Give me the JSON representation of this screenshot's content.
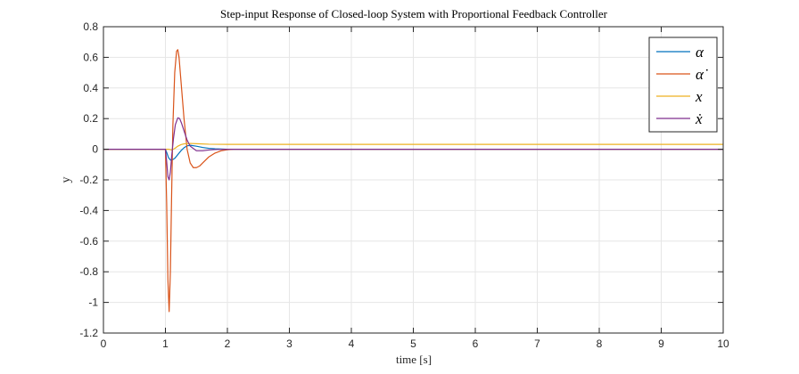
{
  "colors": {
    "alpha": "#0072BD",
    "alpha_dot": "#D95319",
    "x": "#EDB120",
    "x_dot": "#7E2F8E",
    "grid": "#e6e6e6",
    "axis": "#262626"
  },
  "chart_data": {
    "type": "line",
    "title": "Step-input Response of Closed-loop System with Proportional Feedback Controller",
    "xlabel": "time [s]",
    "ylabel": "y",
    "xlim": [
      0,
      10
    ],
    "ylim": [
      -1.2,
      0.8
    ],
    "xticks": [
      0,
      1,
      2,
      3,
      4,
      5,
      6,
      7,
      8,
      9,
      10
    ],
    "yticks": [
      0.8,
      0.6,
      0.4,
      0.2,
      0,
      -0.2,
      -0.4,
      -0.6,
      -0.8,
      -1,
      -1.2
    ],
    "xtick_labels": [
      "0",
      "1",
      "2",
      "3",
      "4",
      "5",
      "6",
      "7",
      "8",
      "9",
      "10"
    ],
    "ytick_labels": [
      "0.8",
      "0.6",
      "0.4",
      "0.2",
      "0",
      "-0.2",
      "-0.4",
      "-0.6",
      "-0.8",
      "-1",
      "-1.2"
    ],
    "grid": true,
    "legend_position": "top-right",
    "series": [
      {
        "name": "α",
        "color_key": "alpha",
        "x": [
          0,
          1.0,
          1.02,
          1.05,
          1.08,
          1.1,
          1.15,
          1.2,
          1.25,
          1.3,
          1.35,
          1.4,
          1.5,
          1.6,
          1.7,
          1.8,
          2.0,
          2.2,
          2.5,
          10
        ],
        "y": [
          0,
          0,
          -0.02,
          -0.055,
          -0.07,
          -0.072,
          -0.06,
          -0.035,
          -0.01,
          0.01,
          0.022,
          0.026,
          0.02,
          0.012,
          0.006,
          0.003,
          0.0,
          0.0,
          0,
          0
        ]
      },
      {
        "name": "α̇",
        "color_key": "alpha_dot",
        "x": [
          0,
          1.0,
          1.02,
          1.04,
          1.06,
          1.08,
          1.1,
          1.12,
          1.15,
          1.18,
          1.2,
          1.22,
          1.25,
          1.3,
          1.35,
          1.4,
          1.45,
          1.5,
          1.55,
          1.6,
          1.7,
          1.8,
          1.9,
          2.0,
          2.1,
          2.3,
          10
        ],
        "y": [
          0,
          0,
          -0.35,
          -0.85,
          -1.06,
          -0.8,
          -0.3,
          0.15,
          0.5,
          0.64,
          0.65,
          0.6,
          0.45,
          0.2,
          0.0,
          -0.09,
          -0.12,
          -0.12,
          -0.11,
          -0.09,
          -0.05,
          -0.025,
          -0.01,
          -0.003,
          0.0,
          0,
          0
        ]
      },
      {
        "name": "x",
        "color_key": "x",
        "x": [
          0,
          1.0,
          1.05,
          1.1,
          1.15,
          1.2,
          1.25,
          1.3,
          1.4,
          1.5,
          1.7,
          2.0,
          10
        ],
        "y": [
          0,
          0,
          0.0,
          -0.005,
          0.005,
          0.02,
          0.03,
          0.035,
          0.038,
          0.036,
          0.033,
          0.032,
          0.032
        ]
      },
      {
        "name": "ẋ",
        "color_key": "x_dot",
        "x": [
          0,
          1.0,
          1.02,
          1.04,
          1.06,
          1.08,
          1.1,
          1.13,
          1.16,
          1.2,
          1.23,
          1.26,
          1.3,
          1.35,
          1.4,
          1.5,
          1.6,
          1.7,
          1.8,
          2.0,
          10
        ],
        "y": [
          0,
          0,
          -0.08,
          -0.18,
          -0.2,
          -0.15,
          -0.05,
          0.07,
          0.16,
          0.205,
          0.2,
          0.17,
          0.12,
          0.06,
          0.02,
          -0.01,
          -0.01,
          -0.005,
          -0.002,
          0,
          0
        ]
      }
    ]
  }
}
